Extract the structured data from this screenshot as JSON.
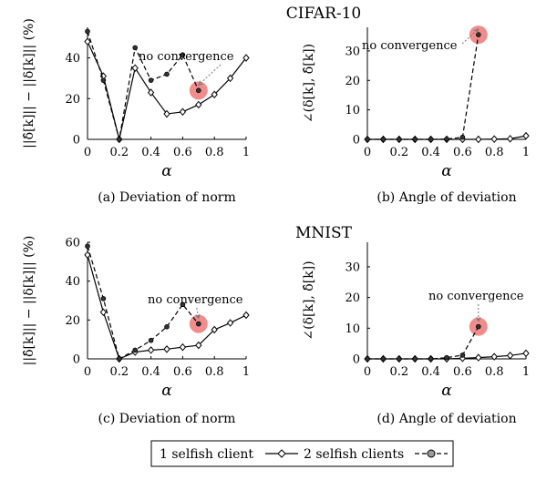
{
  "section_titles": [
    "CIFAR-10",
    "MNIST"
  ],
  "legend": {
    "entries": [
      {
        "label": "1 selfish client",
        "marker": "diamond",
        "dash": "solid"
      },
      {
        "label": "2 selfish clients",
        "marker": "circle",
        "dash": "dashed"
      }
    ]
  },
  "chart_data": [
    {
      "type": "line",
      "group": "CIFAR-10",
      "caption": "(a) Deviation of norm",
      "xlabel": "α",
      "ylabel": "||δ̂[k]|| − ||δ[k]|| (%)",
      "xlim": [
        0,
        1
      ],
      "ylim": [
        0,
        55
      ],
      "yticks": [
        0,
        20,
        40
      ],
      "xticks": [
        0,
        0.2,
        0.4,
        0.6,
        0.8,
        1
      ],
      "annotation": {
        "text": "no convergence",
        "x": 0.7,
        "y": 24
      },
      "series": [
        {
          "name": "1 selfish client",
          "x": [
            0,
            0.1,
            0.2,
            0.3,
            0.4,
            0.5,
            0.6,
            0.7,
            0.8,
            0.9,
            1.0
          ],
          "y": [
            48,
            31,
            0,
            35,
            23,
            12.5,
            13.5,
            17,
            22,
            30,
            40
          ]
        },
        {
          "name": "2 selfish clients",
          "x": [
            0,
            0.1,
            0.2,
            0.3,
            0.4,
            0.5,
            0.6,
            0.7
          ],
          "y": [
            53,
            29,
            0,
            45,
            29,
            32,
            41.5,
            24
          ]
        }
      ]
    },
    {
      "type": "line",
      "group": "CIFAR-10",
      "caption": "(b) Angle of deviation",
      "xlabel": "α",
      "ylabel": "∠(δ[k], δ̂[k])",
      "xlim": [
        0,
        1
      ],
      "ylim": [
        0,
        38
      ],
      "yticks": [
        0,
        10,
        20,
        30
      ],
      "xticks": [
        0,
        0.2,
        0.4,
        0.6,
        0.8,
        1
      ],
      "annotation": {
        "text": "no convergence",
        "x": 0.7,
        "y": 35.5
      },
      "series": [
        {
          "name": "1 selfish client",
          "x": [
            0,
            0.1,
            0.2,
            0.3,
            0.4,
            0.5,
            0.6,
            0.7,
            0.8,
            0.9,
            1.0
          ],
          "y": [
            0,
            0,
            0,
            0,
            0,
            0,
            0,
            0,
            0.1,
            0.2,
            1.2
          ]
        },
        {
          "name": "2 selfish clients",
          "x": [
            0,
            0.1,
            0.2,
            0.3,
            0.4,
            0.5,
            0.6,
            0.7
          ],
          "y": [
            0,
            0,
            0,
            0,
            0,
            0.1,
            0.7,
            35.5
          ]
        }
      ]
    },
    {
      "type": "line",
      "group": "MNIST",
      "caption": "(c) Deviation of norm",
      "xlabel": "α",
      "ylabel": "||δ̂[k]|| − ||δ[k]|| (%)",
      "xlim": [
        0,
        1
      ],
      "ylim": [
        0,
        60
      ],
      "yticks": [
        0,
        20,
        40,
        60
      ],
      "xticks": [
        0,
        0.2,
        0.4,
        0.6,
        0.8,
        1
      ],
      "annotation": {
        "text": "no convergence",
        "x": 0.7,
        "y": 18
      },
      "series": [
        {
          "name": "1 selfish client",
          "x": [
            0,
            0.1,
            0.2,
            0.3,
            0.4,
            0.5,
            0.6,
            0.7,
            0.8,
            0.9,
            1.0
          ],
          "y": [
            53.5,
            24,
            0,
            3.5,
            4.5,
            5,
            6,
            7,
            15,
            18.5,
            22.5
          ]
        },
        {
          "name": "2 selfish clients",
          "x": [
            0,
            0.1,
            0.2,
            0.3,
            0.4,
            0.5,
            0.6,
            0.7
          ],
          "y": [
            58,
            31,
            0,
            4.5,
            9.5,
            16.5,
            28,
            18
          ]
        }
      ]
    },
    {
      "type": "line",
      "group": "MNIST",
      "caption": "(d) Angle of deviation",
      "xlabel": "α",
      "ylabel": "∠(δ[k], δ̂[k])",
      "xlim": [
        0,
        1
      ],
      "ylim": [
        0,
        38
      ],
      "yticks": [
        0,
        10,
        20,
        30
      ],
      "xticks": [
        0,
        0.2,
        0.4,
        0.6,
        0.8,
        1
      ],
      "annotation": {
        "text": "no convergence",
        "x": 0.7,
        "y": 10.5
      },
      "series": [
        {
          "name": "1 selfish client",
          "x": [
            0,
            0.1,
            0.2,
            0.3,
            0.4,
            0.5,
            0.6,
            0.7,
            0.8,
            0.9,
            1.0
          ],
          "y": [
            0,
            0,
            0,
            0,
            0,
            0,
            0.2,
            0.4,
            0.7,
            1.1,
            1.8
          ]
        },
        {
          "name": "2 selfish clients",
          "x": [
            0,
            0.1,
            0.2,
            0.3,
            0.4,
            0.5,
            0.6,
            0.7
          ],
          "y": [
            0,
            0,
            0,
            0,
            0,
            0.4,
            1.2,
            10.5
          ]
        }
      ]
    }
  ],
  "colors": {
    "axis": "#000000",
    "series": "#000000",
    "highlight": "#f08080",
    "arrow": "#777777",
    "marker_fill": "#333333",
    "legend_circle_fill": "#999999"
  }
}
